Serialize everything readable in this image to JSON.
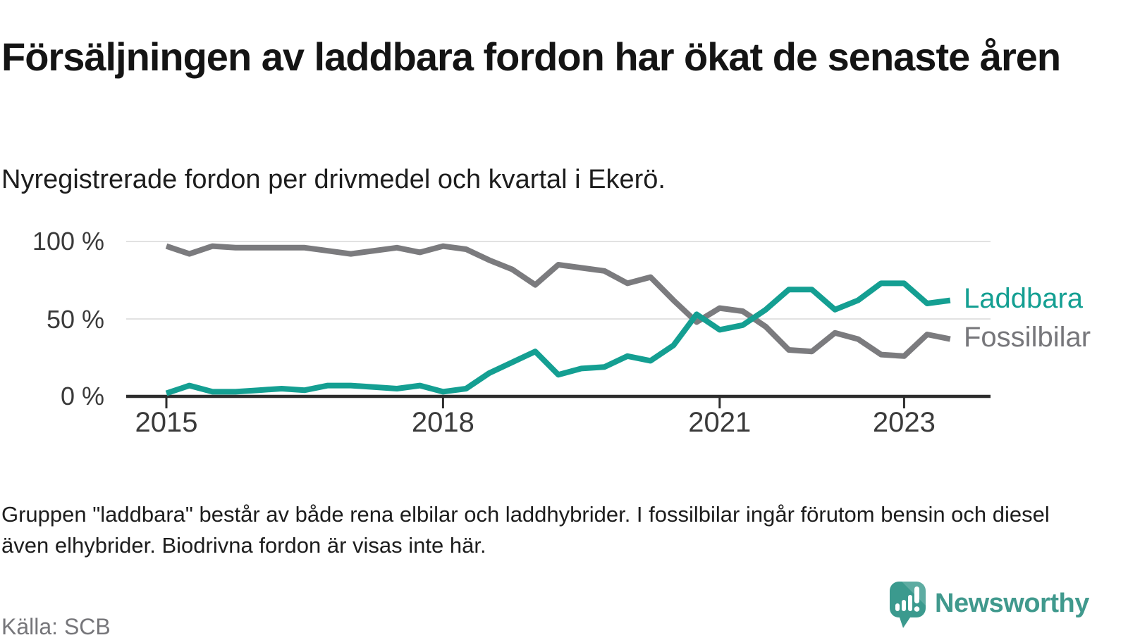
{
  "header": {
    "title": "Försäljningen av laddbara fordon har ökat de senaste åren",
    "subtitle": "Nyregistrerade fordon per drivmedel och kvartal i Ekerö."
  },
  "chart_data": {
    "type": "line",
    "unit": "%",
    "grid": "horizontal",
    "ylim": [
      0,
      100
    ],
    "y_ticks": [
      {
        "label": "100 %",
        "value": 100
      },
      {
        "label": "50 %",
        "value": 50
      },
      {
        "label": "0 %",
        "value": 0
      }
    ],
    "x_ticks": [
      {
        "label": "2015",
        "quarter_index": 0
      },
      {
        "label": "2018",
        "quarter_index": 12
      },
      {
        "label": "2021",
        "quarter_index": 24
      },
      {
        "label": "2023",
        "quarter_index": 32
      }
    ],
    "categories": [
      "2015 Q1",
      "2015 Q2",
      "2015 Q3",
      "2015 Q4",
      "2016 Q1",
      "2016 Q2",
      "2016 Q3",
      "2016 Q4",
      "2017 Q1",
      "2017 Q2",
      "2017 Q3",
      "2017 Q4",
      "2018 Q1",
      "2018 Q2",
      "2018 Q3",
      "2018 Q4",
      "2019 Q1",
      "2019 Q2",
      "2019 Q3",
      "2019 Q4",
      "2020 Q1",
      "2020 Q2",
      "2020 Q3",
      "2020 Q4",
      "2021 Q1",
      "2021 Q2",
      "2021 Q3",
      "2021 Q4",
      "2022 Q1",
      "2022 Q2",
      "2022 Q3",
      "2022 Q4",
      "2023 Q1",
      "2023 Q2",
      "2023 Q3"
    ],
    "series": [
      {
        "name": "Fossilbilar",
        "color": "#7b7b7e",
        "values": [
          97,
          92,
          97,
          96,
          96,
          96,
          96,
          94,
          92,
          94,
          96,
          93,
          97,
          95,
          88,
          82,
          72,
          85,
          83,
          81,
          73,
          77,
          62,
          48,
          57,
          55,
          45,
          30,
          29,
          41,
          37,
          27,
          26,
          40,
          37
        ]
      },
      {
        "name": "Laddbara",
        "color": "#149f92",
        "values": [
          2,
          7,
          3,
          3,
          4,
          5,
          4,
          7,
          7,
          6,
          5,
          7,
          3,
          5,
          15,
          22,
          29,
          14,
          18,
          19,
          26,
          23,
          33,
          53,
          43,
          46,
          56,
          69,
          69,
          56,
          62,
          73,
          73,
          60,
          62
        ]
      }
    ],
    "legend_position": "right-of-line-end"
  },
  "footnote": "Gruppen \"laddbara\" består av både rena elbilar och laddhybrider. I fossilbilar ingår förutom bensin och diesel även elhybrider. Biodrivna fordon är visas inte här.",
  "source": "Källa: SCB",
  "branding": {
    "name": "Newsworthy",
    "icon": "newsworthy-bubble-chart-icon",
    "text_color": "#40998d",
    "icon_color": "#3b9a8e"
  },
  "colors": {
    "accent_teal": "#149f92",
    "neutral_gray": "#7b7b7e",
    "axis": "#2d2d2d",
    "gridline": "#e2e2e2"
  }
}
